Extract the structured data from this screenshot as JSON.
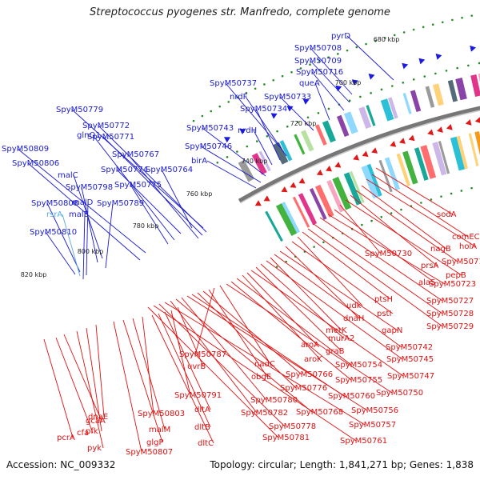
{
  "title": "Streptococcus pyogenes str. Manfredo, complete genome",
  "footer": {
    "accession": "Accession: NC_009332",
    "summary": "Topology: circular; Length: 1,841,271 bp; Genes: 1,838"
  },
  "scale_labels": [
    "680 kbp",
    "700 kbp",
    "720 kbp",
    "740 kbp",
    "760 kbp",
    "780 kbp",
    "800 kbp",
    "820 kbp"
  ],
  "colors": {
    "forward_label": "#1a1ad0",
    "reverse_label": "#e01010",
    "highlight_label": "#55aadd",
    "backbone": "#777777",
    "forward_arrow": "#1a1ae0",
    "reverse_arrow": "#e01818",
    "tick": "#2a8a2a"
  },
  "forward_genes": [
    "pyrD",
    "SpyM50708",
    "SpyM50709",
    "SpyM50716",
    "queA",
    "SpyM50733",
    "SpyM50737",
    "nrdF",
    "SpyM50734",
    "nrdH",
    "SpyM50743",
    "SpyM50746",
    "birA",
    "SpyM50779",
    "SpyM50772",
    "SpyM50771",
    "SpyM50767",
    "SpyM50774",
    "SpyM50764",
    "glnQ1",
    "SpyM50775",
    "SpyM50809",
    "SpyM50806",
    "malC",
    "SpyM50798",
    "SpyM50789",
    "SpyM50808",
    "malD",
    "malE",
    "SpyM50810"
  ],
  "highlight_genes": [
    "rsrA"
  ],
  "reverse_genes": [
    "sodA",
    "comEC",
    "holA",
    "nagB",
    "SpyM50719",
    "prsA",
    "pepB",
    "SpyM50730",
    "alaS",
    "SpyM50723",
    "SpyM50727",
    "SpyM50728",
    "SpyM50729",
    "ptsH",
    "udk",
    "pstI",
    "dnaH",
    "gapN",
    "SpyM50742",
    "metK",
    "SpyM50745",
    "murA2",
    "graB",
    "SpyM50747",
    "aroA",
    "aroK",
    "SpyM50754",
    "SpyM50755",
    "SpyM50750",
    "nadC",
    "SpyM50787",
    "obgE",
    "SpyM50766",
    "SpyM50776",
    "SpyM50760",
    "SpyM50756",
    "SpyM50780",
    "SpyM50768",
    "SpyM50782",
    "SpyM50757",
    "SpyM50778",
    "SpyM50761",
    "SpyM50781",
    "uvrB",
    "SpyM50791",
    "dltA",
    "dltB",
    "dltC",
    "SpyM50803",
    "malM",
    "glgP",
    "SpyM50807",
    "dnaE",
    "pfk",
    "pyk",
    "gcaA",
    "cfa",
    "pcrA"
  ]
}
